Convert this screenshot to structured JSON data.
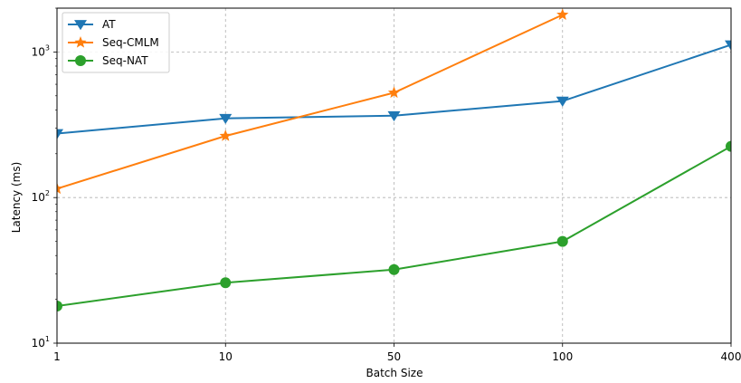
{
  "chart_data": {
    "type": "line",
    "xlabel": "Batch Size",
    "ylabel": "Latency (ms)",
    "categories": [
      "1",
      "10",
      "50",
      "100",
      "400"
    ],
    "yscale": "log",
    "ylim": [
      10,
      2000
    ],
    "yticks": [
      {
        "value": 10,
        "base": "10",
        "exp": "1"
      },
      {
        "value": 100,
        "base": "10",
        "exp": "2"
      },
      {
        "value": 1000,
        "base": "10",
        "exp": "3"
      }
    ],
    "grid": true,
    "legend_position": "top-left",
    "series": [
      {
        "name": "AT",
        "color": "#1f77b4",
        "marker": "triangle-down",
        "values": [
          275,
          350,
          365,
          460,
          1120
        ]
      },
      {
        "name": "Seq-CMLM",
        "color": "#ff7f0e",
        "marker": "star",
        "values": [
          115,
          265,
          525,
          1800,
          null
        ]
      },
      {
        "name": "Seq-NAT",
        "color": "#2ca02c",
        "marker": "circle",
        "values": [
          18,
          26,
          32,
          50,
          225
        ]
      }
    ]
  }
}
